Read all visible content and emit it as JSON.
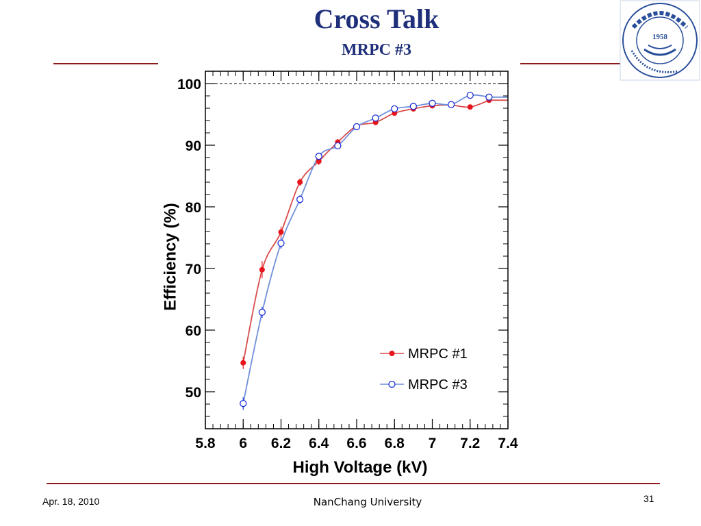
{
  "slide": {
    "title": "Cross Talk",
    "subtitle": "MRPC #3",
    "footer_date": "Apr. 18, 2010",
    "footer_center": "NanChang University",
    "page_number": "31"
  },
  "logo": {
    "icon": "university-seal-icon",
    "year": "1958",
    "text": "University of Science and Technology of China"
  },
  "colors": {
    "title": "#1f2f7a",
    "rule": "#8b1a1a",
    "series1": "#e8141b",
    "series1_line": "#d94a4a",
    "series3": "#1a2ed6",
    "series3_line": "#6f8fd9"
  },
  "chart_data": {
    "type": "scatter",
    "xlabel": "High Voltage (kV)",
    "ylabel": "Efficiency (%)",
    "xlim": [
      5.8,
      7.4
    ],
    "ylim": [
      44,
      102
    ],
    "x_ticks": [
      "5.8",
      "6",
      "6.2",
      "6.4",
      "6.6",
      "6.8",
      "7",
      "7.2",
      "7.4"
    ],
    "x_tick_values": [
      5.8,
      6.0,
      6.2,
      6.4,
      6.6,
      6.8,
      7.0,
      7.2,
      7.4
    ],
    "y_ticks": [
      "50",
      "60",
      "70",
      "80",
      "90",
      "100"
    ],
    "y_tick_values": [
      50,
      60,
      70,
      80,
      90,
      100
    ],
    "reference_line": 100,
    "legend_position": "bottom-right",
    "series": [
      {
        "name": "MRPC #1",
        "marker": "filled-circle",
        "x": [
          6.0,
          6.1,
          6.2,
          6.3,
          6.4,
          6.5,
          6.6,
          6.7,
          6.8,
          6.9,
          7.0,
          7.1,
          7.2,
          7.3
        ],
        "y": [
          54.7,
          69.8,
          75.9,
          84.0,
          87.4,
          90.5,
          93.1,
          93.7,
          95.2,
          95.9,
          96.4,
          96.5,
          96.2,
          97.3
        ],
        "err": [
          1.0,
          1.4,
          0.9,
          0.6,
          0.6,
          0.5,
          0.4,
          0.4,
          0.4,
          0.3,
          0.3,
          0.3,
          0.3,
          0.3
        ]
      },
      {
        "name": "MRPC #3",
        "marker": "open-circle",
        "x": [
          6.0,
          6.1,
          6.2,
          6.3,
          6.4,
          6.5,
          6.6,
          6.7,
          6.8,
          6.9,
          7.0,
          7.1,
          7.2,
          7.3
        ],
        "y": [
          48.1,
          62.9,
          74.1,
          81.2,
          88.2,
          89.9,
          93.0,
          94.4,
          95.9,
          96.3,
          96.8,
          96.6,
          98.1,
          97.8
        ],
        "err": [
          1.0,
          0.9,
          0.9,
          0.7,
          0.6,
          0.5,
          0.4,
          0.4,
          0.3,
          0.3,
          0.3,
          0.3,
          0.3,
          0.3
        ]
      }
    ]
  }
}
